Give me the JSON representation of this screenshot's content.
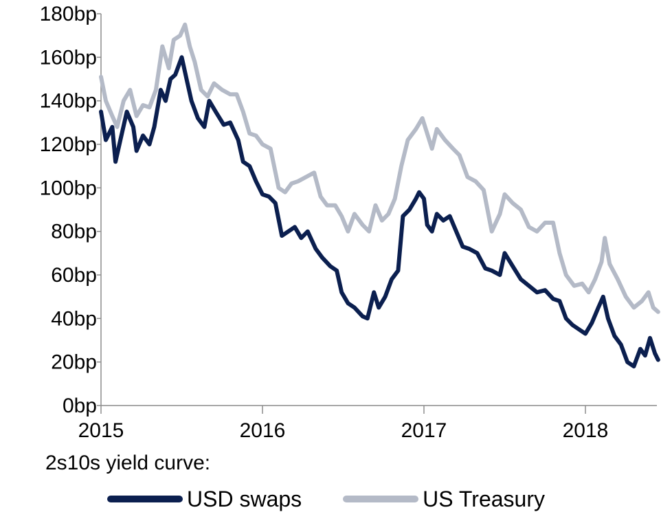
{
  "chart_data": {
    "type": "line",
    "title": "",
    "xlabel": "",
    "ylabel": "",
    "legend_title": "2s10s yield curve:",
    "legend_position": "bottom",
    "grid": false,
    "ylim": [
      0,
      180
    ],
    "xlim": [
      2015.0,
      2018.45
    ],
    "y_ticks": [
      0,
      20,
      40,
      60,
      80,
      100,
      120,
      140,
      160,
      180
    ],
    "y_tick_labels": [
      "0bp",
      "20bp",
      "40bp",
      "60bp",
      "80bp",
      "100bp",
      "120bp",
      "140bp",
      "160bp",
      "180bp"
    ],
    "x_ticks": [
      2015,
      2016,
      2017,
      2018
    ],
    "x_tick_labels": [
      "2015",
      "2016",
      "2017",
      "2018"
    ],
    "series": [
      {
        "name": "USD swaps",
        "color": "#0b1f4f",
        "points": [
          [
            2015.0,
            135
          ],
          [
            2015.03,
            122
          ],
          [
            2015.07,
            128
          ],
          [
            2015.09,
            112
          ],
          [
            2015.12,
            122
          ],
          [
            2015.16,
            135
          ],
          [
            2015.2,
            128
          ],
          [
            2015.22,
            117
          ],
          [
            2015.26,
            124
          ],
          [
            2015.3,
            120
          ],
          [
            2015.33,
            128
          ],
          [
            2015.37,
            145
          ],
          [
            2015.4,
            140
          ],
          [
            2015.43,
            150
          ],
          [
            2015.46,
            152
          ],
          [
            2015.5,
            160
          ],
          [
            2015.53,
            150
          ],
          [
            2015.56,
            140
          ],
          [
            2015.6,
            132
          ],
          [
            2015.64,
            128
          ],
          [
            2015.67,
            140
          ],
          [
            2015.71,
            135
          ],
          [
            2015.76,
            129
          ],
          [
            2015.8,
            130
          ],
          [
            2015.85,
            122
          ],
          [
            2015.88,
            112
          ],
          [
            2015.92,
            110
          ],
          [
            2015.96,
            103
          ],
          [
            2016.0,
            97
          ],
          [
            2016.04,
            96
          ],
          [
            2016.08,
            93
          ],
          [
            2016.12,
            78
          ],
          [
            2016.16,
            80
          ],
          [
            2016.2,
            82
          ],
          [
            2016.24,
            77
          ],
          [
            2016.28,
            80
          ],
          [
            2016.33,
            72
          ],
          [
            2016.37,
            68
          ],
          [
            2016.42,
            64
          ],
          [
            2016.46,
            62
          ],
          [
            2016.49,
            52
          ],
          [
            2016.53,
            47
          ],
          [
            2016.57,
            45
          ],
          [
            2016.62,
            41
          ],
          [
            2016.65,
            40
          ],
          [
            2016.69,
            52
          ],
          [
            2016.72,
            45
          ],
          [
            2016.76,
            50
          ],
          [
            2016.8,
            58
          ],
          [
            2016.84,
            62
          ],
          [
            2016.87,
            87
          ],
          [
            2016.91,
            90
          ],
          [
            2016.95,
            95
          ],
          [
            2016.97,
            98
          ],
          [
            2017.0,
            95
          ],
          [
            2017.02,
            83
          ],
          [
            2017.05,
            80
          ],
          [
            2017.08,
            88
          ],
          [
            2017.12,
            85
          ],
          [
            2017.16,
            87
          ],
          [
            2017.2,
            80
          ],
          [
            2017.24,
            73
          ],
          [
            2017.28,
            72
          ],
          [
            2017.33,
            70
          ],
          [
            2017.38,
            63
          ],
          [
            2017.42,
            62
          ],
          [
            2017.47,
            60
          ],
          [
            2017.5,
            70
          ],
          [
            2017.55,
            64
          ],
          [
            2017.6,
            58
          ],
          [
            2017.65,
            55
          ],
          [
            2017.7,
            52
          ],
          [
            2017.75,
            53
          ],
          [
            2017.8,
            49
          ],
          [
            2017.84,
            48
          ],
          [
            2017.88,
            40
          ],
          [
            2017.92,
            37
          ],
          [
            2017.96,
            35
          ],
          [
            2018.0,
            33
          ],
          [
            2018.04,
            38
          ],
          [
            2018.08,
            45
          ],
          [
            2018.11,
            50
          ],
          [
            2018.14,
            40
          ],
          [
            2018.18,
            32
          ],
          [
            2018.22,
            28
          ],
          [
            2018.26,
            20
          ],
          [
            2018.3,
            18
          ],
          [
            2018.34,
            26
          ],
          [
            2018.37,
            23
          ],
          [
            2018.4,
            31
          ],
          [
            2018.43,
            24
          ],
          [
            2018.45,
            21
          ]
        ]
      },
      {
        "name": "US Treasury",
        "color": "#b4bac7",
        "points": [
          [
            2015.0,
            151
          ],
          [
            2015.03,
            140
          ],
          [
            2015.07,
            133
          ],
          [
            2015.1,
            128
          ],
          [
            2015.14,
            140
          ],
          [
            2015.18,
            145
          ],
          [
            2015.22,
            133
          ],
          [
            2015.26,
            138
          ],
          [
            2015.3,
            137
          ],
          [
            2015.34,
            145
          ],
          [
            2015.38,
            165
          ],
          [
            2015.42,
            155
          ],
          [
            2015.45,
            168
          ],
          [
            2015.49,
            170
          ],
          [
            2015.52,
            175
          ],
          [
            2015.55,
            165
          ],
          [
            2015.58,
            158
          ],
          [
            2015.62,
            145
          ],
          [
            2015.66,
            142
          ],
          [
            2015.7,
            148
          ],
          [
            2015.75,
            145
          ],
          [
            2015.8,
            143
          ],
          [
            2015.84,
            143
          ],
          [
            2015.88,
            135
          ],
          [
            2015.92,
            125
          ],
          [
            2015.96,
            124
          ],
          [
            2016.0,
            120
          ],
          [
            2016.05,
            118
          ],
          [
            2016.1,
            100
          ],
          [
            2016.14,
            98
          ],
          [
            2016.18,
            102
          ],
          [
            2016.22,
            103
          ],
          [
            2016.27,
            105
          ],
          [
            2016.32,
            107
          ],
          [
            2016.36,
            96
          ],
          [
            2016.4,
            92
          ],
          [
            2016.45,
            92
          ],
          [
            2016.49,
            87
          ],
          [
            2016.53,
            80
          ],
          [
            2016.57,
            88
          ],
          [
            2016.62,
            83
          ],
          [
            2016.66,
            80
          ],
          [
            2016.7,
            92
          ],
          [
            2016.74,
            85
          ],
          [
            2016.78,
            88
          ],
          [
            2016.82,
            95
          ],
          [
            2016.86,
            110
          ],
          [
            2016.9,
            122
          ],
          [
            2016.95,
            127
          ],
          [
            2016.99,
            132
          ],
          [
            2017.02,
            125
          ],
          [
            2017.05,
            118
          ],
          [
            2017.08,
            127
          ],
          [
            2017.13,
            122
          ],
          [
            2017.18,
            118
          ],
          [
            2017.22,
            115
          ],
          [
            2017.27,
            105
          ],
          [
            2017.32,
            103
          ],
          [
            2017.37,
            99
          ],
          [
            2017.42,
            80
          ],
          [
            2017.47,
            88
          ],
          [
            2017.5,
            97
          ],
          [
            2017.55,
            93
          ],
          [
            2017.6,
            90
          ],
          [
            2017.65,
            82
          ],
          [
            2017.7,
            80
          ],
          [
            2017.75,
            84
          ],
          [
            2017.8,
            84
          ],
          [
            2017.84,
            70
          ],
          [
            2017.88,
            60
          ],
          [
            2017.93,
            55
          ],
          [
            2017.98,
            56
          ],
          [
            2018.02,
            52
          ],
          [
            2018.06,
            58
          ],
          [
            2018.1,
            66
          ],
          [
            2018.12,
            77
          ],
          [
            2018.15,
            65
          ],
          [
            2018.2,
            58
          ],
          [
            2018.25,
            50
          ],
          [
            2018.3,
            45
          ],
          [
            2018.35,
            48
          ],
          [
            2018.39,
            52
          ],
          [
            2018.42,
            45
          ],
          [
            2018.45,
            43
          ]
        ]
      }
    ]
  }
}
